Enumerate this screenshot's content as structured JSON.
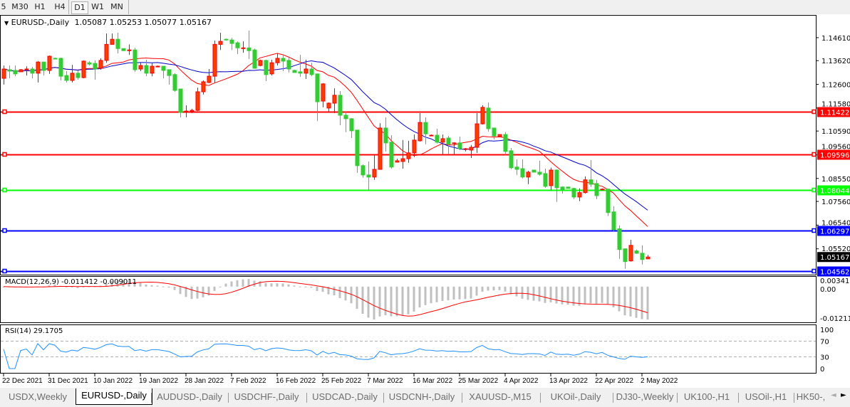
{
  "toolbar": {
    "timeframes": [
      "5",
      "M30",
      "H1",
      "H4",
      "D1",
      "W1",
      "MN"
    ],
    "active": "D1"
  },
  "chart_header": {
    "symbol": "EURUSD-,Daily",
    "ohlc": "1.05087 1.05253 1.05077 1.05167"
  },
  "tabs": {
    "items": [
      "USDX,Weekly",
      "EURUSD-,Daily",
      "AUDUSD-,Daily",
      "USDCHF-,Daily",
      "USDCAD-,Daily",
      "USDCNH-,Daily",
      "XAUUSD-,M15",
      "UKOil-,Daily",
      "DJ30-,Weekly",
      "UK100-,H1",
      "USOil-,H1",
      "HK50-,"
    ],
    "active": "EURUSD-,Daily"
  },
  "colors": {
    "bull_candle": "#ff0000",
    "bear_candle": "#32cd32",
    "ma_fast": "#ff0000",
    "ma_slow": "#0000c8",
    "macd_histogram": "#c0c0c0",
    "macd_signal": "#ff0000",
    "rsi_line": "#1e90ff"
  },
  "chart_data": [
    {
      "type": "candlestick",
      "title": "EURUSD-,Daily",
      "date_labels": [
        "22 Dec 2021",
        "31 Dec 2021",
        "10 Jan 2022",
        "19 Jan 2022",
        "28 Jan 2022",
        "7 Feb 2022",
        "16 Feb 2022",
        "25 Feb 2022",
        "7 Mar 2022",
        "16 Mar 2022",
        "25 Mar 2022",
        "4 Apr 2022",
        "13 Apr 2022",
        "22 Apr 2022",
        "2 May 2022"
      ],
      "price_ticks": [
        "1.14610",
        "1.13620",
        "1.12600",
        "1.11580",
        "1.10590",
        "1.09560",
        "1.08550",
        "1.07560",
        "1.06540",
        "1.05520"
      ],
      "ylim": [
        1.0435,
        1.157
      ],
      "moving_averages": [
        {
          "period": 12,
          "color": "#ff0000"
        },
        {
          "period": 20,
          "color": "#0000c8"
        }
      ],
      "horizontal_lines": [
        {
          "price": "1.11422",
          "color": "#ff0000"
        },
        {
          "price": "1.09596",
          "color": "#ff0000"
        },
        {
          "price": "1.08044",
          "color": "#00ff00"
        },
        {
          "price": "1.06297",
          "color": "#0000ff"
        },
        {
          "price": "1.04562",
          "color": "#0000ff"
        }
      ],
      "current_price": "1.05167",
      "ohlc": [
        [
          1.1286,
          1.1341,
          1.1259,
          1.1326
        ],
        [
          1.1323,
          1.1341,
          1.1286,
          1.1317
        ],
        [
          1.132,
          1.1341,
          1.1295,
          1.1305
        ],
        [
          1.1314,
          1.1326,
          1.1314,
          1.1323
        ],
        [
          1.1323,
          1.1338,
          1.1298,
          1.1326
        ],
        [
          1.1326,
          1.1335,
          1.1286,
          1.1308
        ],
        [
          1.1308,
          1.136,
          1.1268,
          1.1356
        ],
        [
          1.1356,
          1.1356,
          1.1298,
          1.132
        ],
        [
          1.132,
          1.1384,
          1.1305,
          1.1381
        ],
        [
          1.1372,
          1.1375,
          1.1369,
          1.1369
        ],
        [
          1.1372,
          1.1375,
          1.1277,
          1.1295
        ],
        [
          1.1298,
          1.1317,
          1.1268,
          1.1277
        ],
        [
          1.1277,
          1.1344,
          1.1268,
          1.1308
        ],
        [
          1.1308,
          1.132,
          1.128,
          1.1289
        ],
        [
          1.1289,
          1.1363,
          1.1286,
          1.136
        ],
        [
          1.1353,
          1.136,
          1.1341,
          1.1347
        ],
        [
          1.135,
          1.1363,
          1.128,
          1.1326
        ],
        [
          1.1329,
          1.1372,
          1.1323,
          1.1363
        ],
        [
          1.1363,
          1.1479,
          1.1353,
          1.1432
        ],
        [
          1.1432,
          1.1479,
          1.1432,
          1.1454
        ],
        [
          1.1454,
          1.1482,
          1.1393,
          1.1414
        ],
        [
          1.1414,
          1.1414,
          1.1405,
          1.1405
        ],
        [
          1.1408,
          1.1432,
          1.1387,
          1.1408
        ],
        [
          1.1408,
          1.1417,
          1.1314,
          1.1323
        ],
        [
          1.1326,
          1.1353,
          1.1317,
          1.1341
        ],
        [
          1.1341,
          1.1366,
          1.1295,
          1.1308
        ],
        [
          1.1308,
          1.1353,
          1.1295,
          1.1338
        ],
        [
          1.1338,
          1.1341,
          1.1335,
          1.1338
        ],
        [
          1.1338,
          1.1338,
          1.1286,
          1.132
        ],
        [
          1.1323,
          1.1323,
          1.1259,
          1.1298
        ],
        [
          1.1302,
          1.1308,
          1.1228,
          1.1234
        ],
        [
          1.124,
          1.124,
          1.1118,
          1.1139
        ],
        [
          1.1145,
          1.117,
          1.1118,
          1.1145
        ],
        [
          1.1145,
          1.1155,
          1.1136,
          1.1148
        ],
        [
          1.1148,
          1.1246,
          1.1145,
          1.1228
        ],
        [
          1.1228,
          1.1277,
          1.1216,
          1.1271
        ],
        [
          1.1268,
          1.1326,
          1.1265,
          1.1295
        ],
        [
          1.1295,
          1.1448,
          1.1265,
          1.1432
        ],
        [
          1.1432,
          1.1482,
          1.1408,
          1.1445
        ],
        [
          1.1454,
          1.1457,
          1.1448,
          1.1451
        ],
        [
          1.1451,
          1.146,
          1.1408,
          1.1436
        ],
        [
          1.1439,
          1.1445,
          1.139,
          1.1417
        ],
        [
          1.1417,
          1.1445,
          1.1396,
          1.1417
        ],
        [
          1.1417,
          1.1491,
          1.1369,
          1.1405
        ],
        [
          1.1408,
          1.1414,
          1.1329,
          1.1329
        ],
        [
          1.1341,
          1.1366,
          1.1338,
          1.1363
        ],
        [
          1.1363,
          1.1366,
          1.1274,
          1.1302
        ],
        [
          1.1305,
          1.1366,
          1.1298,
          1.1353
        ],
        [
          1.1353,
          1.1393,
          1.1341,
          1.1372
        ],
        [
          1.1372,
          1.1384,
          1.1317,
          1.136
        ],
        [
          1.1363,
          1.1375,
          1.1311,
          1.1326
        ],
        [
          1.132,
          1.1323,
          1.1311,
          1.1311
        ],
        [
          1.1314,
          1.1387,
          1.1292,
          1.1308
        ],
        [
          1.1308,
          1.1366,
          1.1283,
          1.1326
        ],
        [
          1.1326,
          1.1353,
          1.1295,
          1.1302
        ],
        [
          1.1305,
          1.1305,
          1.1102,
          1.1185
        ],
        [
          1.1188,
          1.1265,
          1.1161,
          1.1262
        ],
        [
          1.1158,
          1.1182,
          1.1142,
          1.1179
        ],
        [
          1.1179,
          1.1243,
          1.1136,
          1.1213
        ],
        [
          1.1213,
          1.1231,
          1.1084,
          1.1127
        ],
        [
          1.1127,
          1.1142,
          1.1054,
          1.1112
        ],
        [
          1.1112,
          1.1115,
          1.1029,
          1.106
        ],
        [
          1.1063,
          1.1063,
          1.0879,
          1.091
        ],
        [
          1.091,
          1.0916,
          1.0858,
          1.087
        ],
        [
          1.087,
          1.0928,
          1.0803,
          1.0861
        ],
        [
          1.0861,
          1.0956,
          1.0849,
          1.0894
        ],
        [
          1.0894,
          1.1093,
          1.0894,
          1.1072
        ],
        [
          1.1072,
          1.1118,
          1.0971,
          1.1008
        ],
        [
          1.1011,
          1.1041,
          1.0897,
          1.0904
        ],
        [
          1.0925,
          1.094,
          1.0925,
          1.0931
        ],
        [
          1.0928,
          1.102,
          1.0897,
          1.094
        ],
        [
          1.094,
          1.1017,
          1.0922,
          1.0965
        ],
        [
          1.0965,
          1.1044,
          1.0947,
          1.102
        ],
        [
          1.1017,
          1.1136,
          1.1014,
          1.1096
        ],
        [
          1.1096,
          1.1118,
          1.1002,
          1.1047
        ],
        [
          1.1041,
          1.1044,
          1.1038,
          1.1041
        ],
        [
          1.1041,
          1.1069,
          1.1005,
          1.1011
        ],
        [
          1.1011,
          1.1044,
          1.0959,
          1.1026
        ],
        [
          1.1029,
          1.1038,
          1.0959,
          1.1002
        ],
        [
          1.1005,
          1.1011,
          1.0959,
          1.1008
        ],
        [
          1.1008,
          1.1035,
          1.0977,
          1.0983
        ],
        [
          1.098,
          1.0986,
          1.0971,
          1.0983
        ],
        [
          1.0977,
          1.0999,
          1.0943,
          1.0989
        ],
        [
          1.0989,
          1.1136,
          1.0965,
          1.109
        ],
        [
          1.109,
          1.117,
          1.1087,
          1.1161
        ],
        [
          1.1158,
          1.1182,
          1.1057,
          1.1069
        ],
        [
          1.1072,
          1.1072,
          1.1023,
          1.1038
        ],
        [
          1.1035,
          1.1044,
          1.1032,
          1.1044
        ],
        [
          1.1044,
          1.1054,
          1.0956,
          1.0971
        ],
        [
          1.0974,
          1.0986,
          1.0894,
          1.0901
        ],
        [
          1.0904,
          1.0937,
          1.087,
          1.0894
        ],
        [
          1.0897,
          1.0937,
          1.0855,
          1.0861
        ],
        [
          1.0861,
          1.0888,
          1.083,
          1.0882
        ],
        [
          1.0891,
          1.0891,
          1.0882,
          1.0882
        ],
        [
          1.0882,
          1.0931,
          1.0867,
          1.0873
        ],
        [
          1.0876,
          1.0897,
          1.0815,
          1.0821
        ],
        [
          1.0824,
          1.0901,
          1.0803,
          1.0891
        ],
        [
          1.0891,
          1.0894,
          1.0754,
          1.0815
        ],
        [
          1.0818,
          1.0821,
          1.079,
          1.0806
        ],
        [
          1.0818,
          1.0818,
          1.0812,
          1.0812
        ],
        [
          1.0812,
          1.0815,
          1.0766,
          1.0775
        ],
        [
          1.0775,
          1.0812,
          1.0757,
          1.0794
        ],
        [
          1.0794,
          1.0864,
          1.079,
          1.0849
        ],
        [
          1.0849,
          1.0934,
          1.0818,
          1.083
        ],
        [
          1.0833,
          1.0849,
          1.0766,
          1.0781
        ],
        [
          1.0806,
          1.0812,
          1.0803,
          1.0809
        ],
        [
          1.0809,
          1.0809,
          1.0693,
          1.0708
        ],
        [
          1.0711,
          1.0735,
          1.0625,
          1.0634
        ],
        [
          1.0638,
          1.0653,
          1.0509,
          1.0549
        ],
        [
          1.0552,
          1.0552,
          1.0466,
          1.0497
        ],
        [
          1.05,
          1.0591,
          1.0497,
          1.0567
        ],
        [
          1.0543,
          1.0549,
          1.053,
          1.0533
        ],
        [
          1.0533,
          1.0567,
          1.0485,
          1.0506
        ],
        [
          1.05087,
          1.05253,
          1.05077,
          1.05167
        ]
      ]
    },
    {
      "type": "bar",
      "indicator": "MACD",
      "label": "MACD(12,26,9) -0.011412 -0.009011",
      "params": [
        12,
        26,
        9
      ],
      "ylim": [
        -0.012118,
        0.003411
      ],
      "tick_labels": [
        "0.003411",
        "0.00",
        "-0.012118"
      ]
    },
    {
      "type": "line",
      "indicator": "RSI",
      "label": "RSI(14) 29.1705",
      "period": 14,
      "ylim": [
        0,
        100
      ],
      "tick_labels": [
        "100",
        "70",
        "30",
        "0"
      ],
      "levels": [
        70,
        30
      ]
    }
  ]
}
